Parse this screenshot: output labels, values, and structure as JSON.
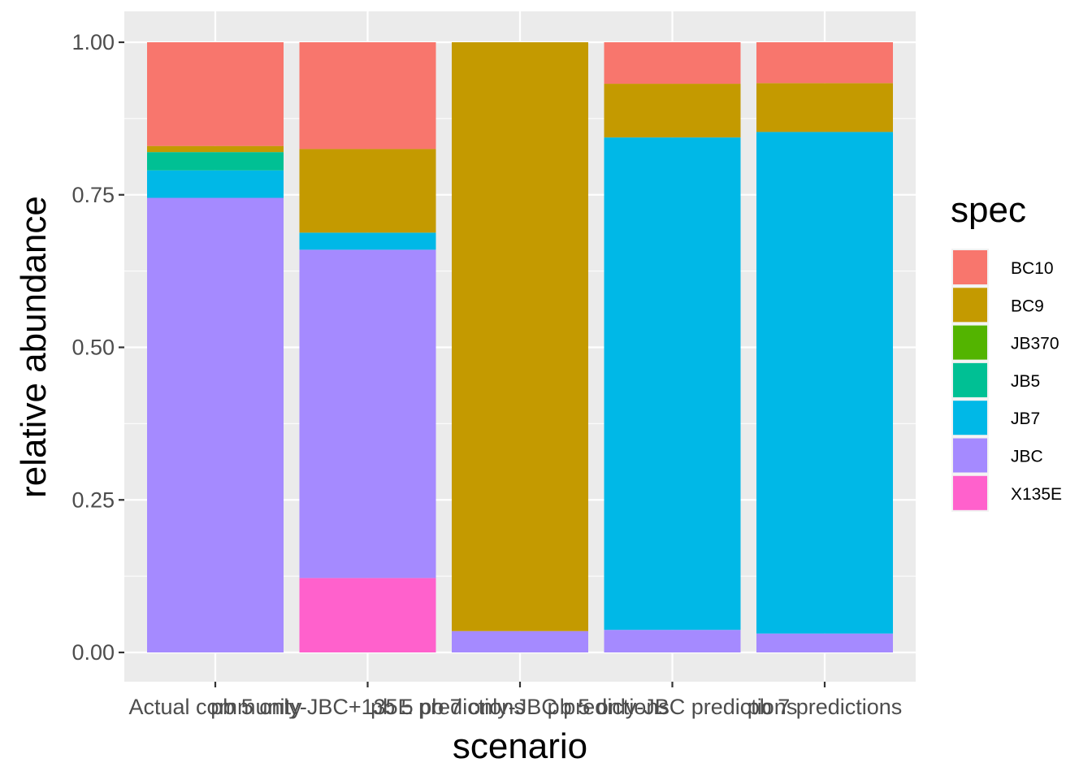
{
  "chart_data": {
    "type": "bar",
    "stacked": true,
    "xlabel": "scenario",
    "ylabel": "relative abundance",
    "ylim": [
      0,
      1
    ],
    "y_ticks": [
      "0.00",
      "0.25",
      "0.50",
      "0.75",
      "1.00"
    ],
    "categories": [
      "Actual community",
      "pb 5 only-JBC+135E predictions",
      "pb 5 pb 7 only-JBC predictions",
      "pb 5 only-JBC predictions",
      "pb 7 predictions"
    ],
    "legend": {
      "title": "spec",
      "placement": "right"
    },
    "series": [
      {
        "name": "X135E",
        "color": "#FF61CC",
        "values": [
          0,
          0.122,
          0,
          0,
          0
        ]
      },
      {
        "name": "JBC",
        "color": "#A58AFF",
        "values": [
          0.745,
          0.538,
          0.035,
          0.037,
          0.031
        ]
      },
      {
        "name": "JB7",
        "color": "#00B8E7",
        "values": [
          0.045,
          0.028,
          0,
          0.807,
          0.822
        ]
      },
      {
        "name": "JB5",
        "color": "#00C094",
        "values": [
          0.03,
          0,
          0,
          0,
          0
        ]
      },
      {
        "name": "JB370",
        "color": "#53B400",
        "values": [
          0,
          0,
          0,
          0,
          0
        ]
      },
      {
        "name": "BC9",
        "color": "#C49A00",
        "values": [
          0.01,
          0.137,
          0.965,
          0.088,
          0.08
        ]
      },
      {
        "name": "BC10",
        "color": "#F8766D",
        "values": [
          0.17,
          0.175,
          0,
          0.068,
          0.067
        ]
      }
    ],
    "legend_order": [
      "BC10",
      "BC9",
      "JB370",
      "JB5",
      "JB7",
      "JBC",
      "X135E"
    ],
    "grid": true,
    "panel_background": "#EBEBEB",
    "grid_color": "#FFFFFF"
  }
}
